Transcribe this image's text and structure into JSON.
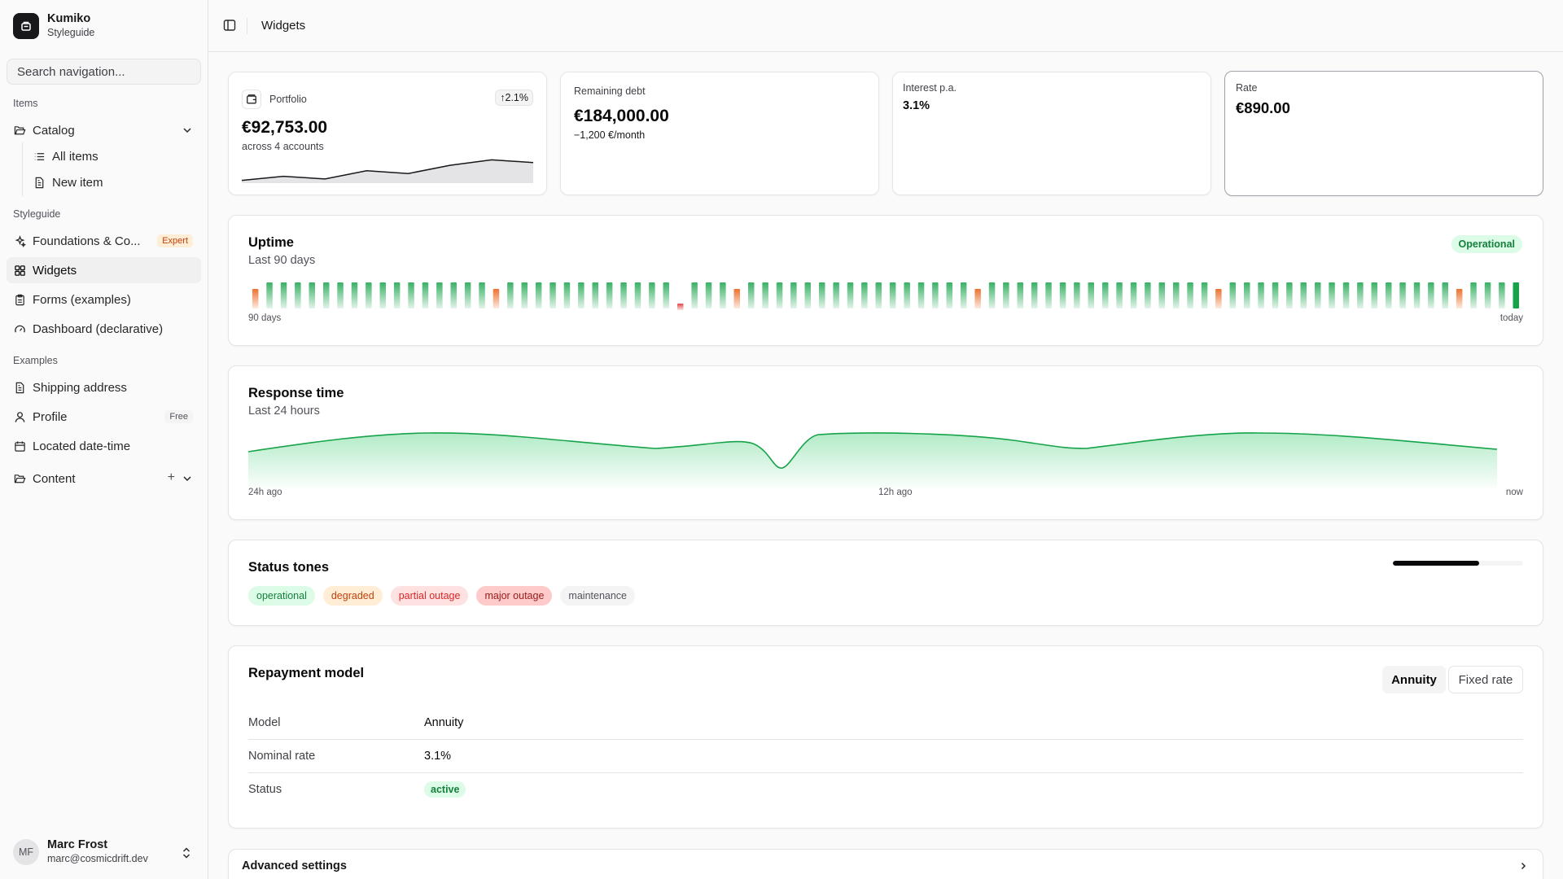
{
  "brand": {
    "name": "Kumiko",
    "subtitle": "Styleguide"
  },
  "search": {
    "placeholder": "Search navigation..."
  },
  "nav": {
    "items_label": "Items",
    "catalog": "Catalog",
    "all_items": "All items",
    "new_item": "New item",
    "styleguide_label": "Styleguide",
    "foundations": "Foundations & Co...",
    "foundations_badge": "Expert",
    "widgets": "Widgets",
    "forms": "Forms (examples)",
    "dashboard": "Dashboard (declarative)",
    "examples_label": "Examples",
    "shipping": "Shipping address",
    "profile": "Profile",
    "profile_badge": "Free",
    "located": "Located date-time",
    "content": "Content"
  },
  "user": {
    "initials": "MF",
    "name": "Marc Frost",
    "email": "marc@cosmicdrift.dev"
  },
  "header": {
    "title": "Widgets"
  },
  "stats": {
    "portfolio": {
      "label": "Portfolio",
      "trend": "↑2.1%",
      "value": "€92,753.00",
      "sub": "across 4 accounts",
      "sparkline": [
        2,
        5,
        3,
        9,
        7,
        13,
        17,
        15
      ]
    },
    "debt": {
      "label": "Remaining debt",
      "value": "€184,000.00",
      "sub": "−1,200 €/month"
    },
    "interest": {
      "label": "Interest p.a.",
      "value": "3.1%"
    },
    "rate": {
      "label": "Rate",
      "value": "€890.00"
    }
  },
  "uptime": {
    "title": "Uptime",
    "subtitle": "Last 90 days",
    "status": "Operational",
    "x_start": "90 days",
    "x_end": "today",
    "days": [
      "d",
      "o",
      "o",
      "o",
      "o",
      "o",
      "o",
      "o",
      "o",
      "o",
      "o",
      "o",
      "o",
      "o",
      "o",
      "o",
      "o",
      "d",
      "o",
      "o",
      "o",
      "o",
      "o",
      "o",
      "o",
      "o",
      "o",
      "o",
      "o",
      "o",
      "p",
      "o",
      "o",
      "o",
      "d",
      "o",
      "o",
      "o",
      "o",
      "o",
      "o",
      "o",
      "o",
      "o",
      "o",
      "o",
      "o",
      "o",
      "o",
      "o",
      "o",
      "d",
      "o",
      "o",
      "o",
      "o",
      "o",
      "o",
      "o",
      "o",
      "o",
      "o",
      "o",
      "o",
      "o",
      "o",
      "o",
      "o",
      "d",
      "o",
      "o",
      "o",
      "o",
      "o",
      "o",
      "o",
      "o",
      "o",
      "o",
      "o",
      "o",
      "o",
      "o",
      "o",
      "o",
      "d",
      "o",
      "o",
      "o",
      "o"
    ],
    "colors": {
      "o": "#16a34a",
      "d": "#ea580c",
      "p": "#dc2626"
    }
  },
  "response": {
    "title": "Response time",
    "subtitle": "Last 24 hours",
    "x_labels": [
      "24h ago",
      "12h ago",
      "now"
    ]
  },
  "status_tones": {
    "title": "Status tones",
    "progress": 0.66,
    "pills": [
      {
        "label": "operational",
        "color": "#15803d",
        "bg": "#dcfce7"
      },
      {
        "label": "degraded",
        "color": "#c2410c",
        "bg": "#ffedd5"
      },
      {
        "label": "partial outage",
        "color": "#dc2626",
        "bg": "#fee2e2"
      },
      {
        "label": "major outage",
        "color": "#991b1b",
        "bg": "#fecaca"
      },
      {
        "label": "maintenance",
        "color": "#52525b",
        "bg": "#f4f4f5"
      }
    ]
  },
  "repayment": {
    "title": "Repayment model",
    "seg_annuity": "Annuity",
    "seg_fixed": "Fixed rate",
    "rows": [
      {
        "key": "Model",
        "value": "Annuity"
      },
      {
        "key": "Nominal rate",
        "value": "3.1%"
      },
      {
        "key": "Status",
        "value": "active"
      }
    ]
  },
  "advanced": {
    "title": "Advanced settings"
  }
}
